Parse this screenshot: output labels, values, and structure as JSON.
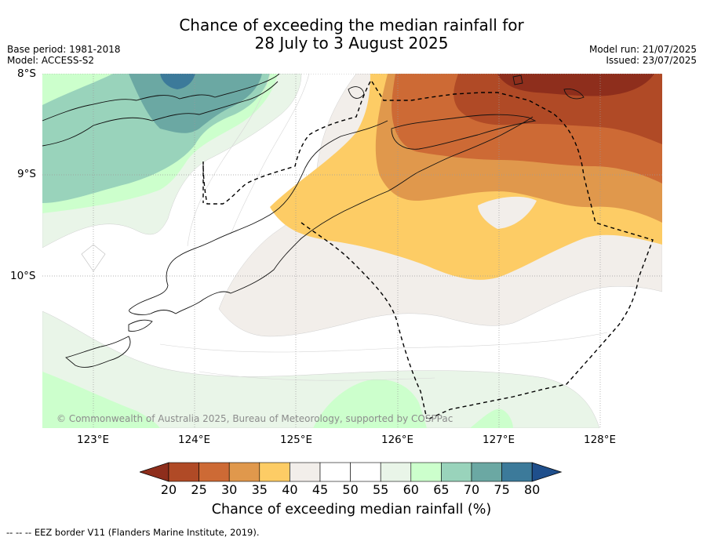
{
  "title": {
    "line1": "Chance of exceeding the median rainfall for",
    "line2": "28 July to 3 August 2025"
  },
  "meta_left": {
    "base_period": "Base period: 1981-2018",
    "model": "Model: ACCESS-S2"
  },
  "meta_right": {
    "model_run": "Model run: 21/07/2025",
    "issued": "Issued: 23/07/2025"
  },
  "lat_ticks": [
    "8°S",
    "9°S",
    "10°S"
  ],
  "lon_ticks": [
    "123°E",
    "124°E",
    "125°E",
    "126°E",
    "127°E",
    "128°E"
  ],
  "copyright": "© Commonwealth of Australia 2025, Bureau of Meteorology, supported by COSPPac",
  "colorbar": {
    "labels": [
      "20",
      "25",
      "30",
      "35",
      "40",
      "45",
      "50",
      "55",
      "60",
      "65",
      "70",
      "75",
      "80"
    ],
    "colors": [
      "#8e2e1c",
      "#b04a26",
      "#cd6a35",
      "#e0984c",
      "#fdcc65",
      "#f2eeea",
      "#ffffff",
      "#ffffff",
      "#e9f5e8",
      "#ccffcc",
      "#99d3bb",
      "#6ba8a3",
      "#3c7a9a",
      "#1f4f8c"
    ],
    "title": "Chance of exceeding median rainfall (%)"
  },
  "footer": "--  --  -- EEZ border V11 (Flanders Marine Institute, 2019)."
}
